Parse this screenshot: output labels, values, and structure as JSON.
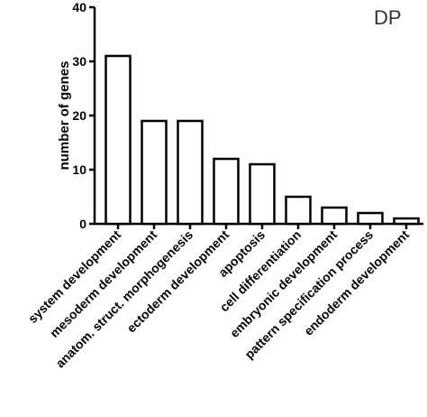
{
  "chart_data": {
    "type": "bar",
    "panel_label": "DP",
    "ylabel": "number of genes",
    "xlabel": "",
    "ylim": [
      0,
      40
    ],
    "yticks": [
      0,
      10,
      20,
      30,
      40
    ],
    "categories": [
      "system development",
      "mesoderm development",
      "anatom. struct. morphogenesis",
      "ectoderm development",
      "apoptosis",
      "cell differentiation",
      "embryonic development",
      "pattern specification process",
      "endoderm development"
    ],
    "values": [
      31,
      19,
      19,
      12,
      11,
      5,
      3,
      2,
      1
    ],
    "grid": false,
    "legend": "none",
    "bar_fill": "#ffffff",
    "bar_stroke": "#000000"
  }
}
